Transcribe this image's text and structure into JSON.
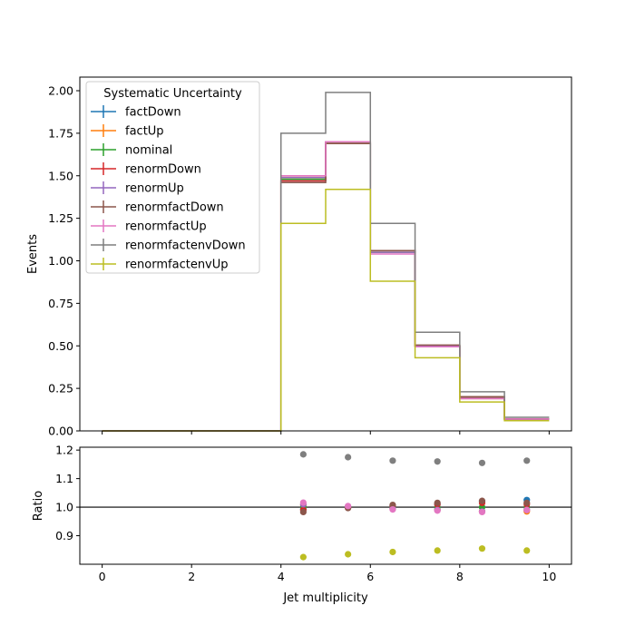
{
  "chart_data": {
    "type": "step",
    "xlabel": "Jet multiplicity",
    "bin_edges": [
      0,
      1,
      2,
      3,
      4,
      5,
      6,
      7,
      8,
      9,
      10
    ],
    "x_ticks": [
      0,
      2,
      4,
      6,
      8,
      10
    ],
    "top_panel": {
      "ylabel": "Events",
      "ylim": [
        0,
        2.08
      ],
      "y_ticks": [
        "0.00",
        "0.25",
        "0.50",
        "0.75",
        "1.00",
        "1.25",
        "1.50",
        "1.75",
        "2.00"
      ],
      "legend": {
        "title": "Systematic Uncertainty",
        "placement": "upper-left"
      },
      "series": [
        {
          "name": "factDown",
          "color": "#1f77b4",
          "values": [
            0,
            0,
            0,
            0,
            1.47,
            1.69,
            1.06,
            0.5,
            0.2,
            0.07
          ]
        },
        {
          "name": "factUp",
          "color": "#ff7f0e",
          "values": [
            0,
            0,
            0,
            0,
            1.49,
            1.7,
            1.05,
            0.5,
            0.19,
            0.07
          ]
        },
        {
          "name": "nominal",
          "color": "#2ca02c",
          "values": [
            0,
            0,
            0,
            0,
            1.48,
            1.69,
            1.05,
            0.5,
            0.2,
            0.07
          ]
        },
        {
          "name": "renormDown",
          "color": "#d62728",
          "values": [
            0,
            0,
            0,
            0,
            1.47,
            1.69,
            1.06,
            0.5,
            0.2,
            0.07
          ]
        },
        {
          "name": "renormUp",
          "color": "#9467bd",
          "values": [
            0,
            0,
            0,
            0,
            1.49,
            1.7,
            1.05,
            0.5,
            0.19,
            0.07
          ]
        },
        {
          "name": "renormfactDown",
          "color": "#8c564b",
          "values": [
            0,
            0,
            0,
            0,
            1.46,
            1.69,
            1.06,
            0.505,
            0.2,
            0.07
          ]
        },
        {
          "name": "renormfactUp",
          "color": "#e377c2",
          "values": [
            0,
            0,
            0,
            0,
            1.5,
            1.7,
            1.04,
            0.495,
            0.19,
            0.07
          ]
        },
        {
          "name": "renormfactenvDown",
          "color": "#7f7f7f",
          "values": [
            0,
            0,
            0,
            0,
            1.75,
            1.99,
            1.22,
            0.58,
            0.23,
            0.08
          ]
        },
        {
          "name": "renormfactenvUp",
          "color": "#bcbd22",
          "values": [
            0,
            0,
            0,
            0,
            1.22,
            1.42,
            0.88,
            0.43,
            0.17,
            0.06
          ]
        }
      ]
    },
    "ratio_panel": {
      "ylabel": "Ratio",
      "ylim": [
        0.8,
        1.21
      ],
      "y_ticks": [
        "0.9",
        "1.0",
        "1.1",
        "1.2"
      ],
      "reference_line": 1.0,
      "x": [
        4.5,
        5.5,
        6.5,
        7.5,
        8.5,
        9.5
      ],
      "series": [
        {
          "name": "factDown",
          "color": "#1f77b4",
          "values": [
            0.993,
            1.0,
            1.005,
            1.01,
            1.02,
            1.025
          ]
        },
        {
          "name": "factUp",
          "color": "#ff7f0e",
          "values": [
            1.007,
            1.0,
            0.995,
            0.99,
            0.985,
            0.985
          ]
        },
        {
          "name": "nominal",
          "color": "#2ca02c",
          "values": [
            1.0,
            1.0,
            1.0,
            1.0,
            1.0,
            1.0
          ]
        },
        {
          "name": "renormDown",
          "color": "#d62728",
          "values": [
            0.99,
            0.998,
            1.005,
            1.01,
            1.015,
            1.01
          ]
        },
        {
          "name": "renormUp",
          "color": "#9467bd",
          "values": [
            1.01,
            1.002,
            0.995,
            0.99,
            0.985,
            0.99
          ]
        },
        {
          "name": "renormfactDown",
          "color": "#8c564b",
          "values": [
            0.983,
            0.997,
            1.008,
            1.015,
            1.022,
            1.015
          ]
        },
        {
          "name": "renormfactUp",
          "color": "#e377c2",
          "values": [
            1.016,
            1.004,
            0.992,
            0.988,
            0.983,
            0.99
          ]
        },
        {
          "name": "renormfactenvDown",
          "color": "#7f7f7f",
          "values": [
            1.185,
            1.175,
            1.163,
            1.16,
            1.155,
            1.163
          ]
        },
        {
          "name": "renormfactenvUp",
          "color": "#bcbd22",
          "values": [
            0.825,
            0.835,
            0.843,
            0.848,
            0.855,
            0.848
          ]
        }
      ]
    }
  }
}
